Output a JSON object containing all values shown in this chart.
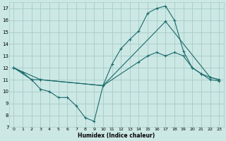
{
  "xlabel": "Humidex (Indice chaleur)",
  "xlim": [
    -0.5,
    23.5
  ],
  "ylim": [
    7,
    17.5
  ],
  "xticks": [
    0,
    1,
    2,
    3,
    4,
    5,
    6,
    7,
    8,
    9,
    10,
    11,
    12,
    13,
    14,
    15,
    16,
    17,
    18,
    19,
    20,
    21,
    22,
    23
  ],
  "yticks": [
    7,
    8,
    9,
    10,
    11,
    12,
    13,
    14,
    15,
    16,
    17
  ],
  "bg_color": "#cce8e5",
  "grid_color": "#aacfcb",
  "line_color": "#1a6b6b",
  "line1_x": [
    0,
    1,
    2,
    3,
    4,
    5,
    6,
    7,
    8,
    9,
    10,
    11,
    12,
    13,
    14,
    15,
    16,
    17,
    18,
    19,
    20,
    21,
    22,
    23
  ],
  "line1_y": [
    12.0,
    11.6,
    11.0,
    10.2,
    10.0,
    9.5,
    9.5,
    8.8,
    7.8,
    7.5,
    10.5,
    12.3,
    13.6,
    14.4,
    15.1,
    16.6,
    17.0,
    17.2,
    16.0,
    13.4,
    12.0,
    11.5,
    11.0,
    10.9
  ],
  "line2_x": [
    0,
    2,
    3,
    10,
    14,
    15,
    16,
    17,
    18,
    19,
    20,
    21,
    22,
    23
  ],
  "line2_y": [
    12.0,
    11.0,
    11.0,
    10.5,
    12.5,
    13.0,
    13.3,
    13.0,
    13.3,
    13.0,
    12.0,
    11.5,
    11.2,
    11.0
  ],
  "line3_x": [
    0,
    3,
    10,
    17,
    22,
    23
  ],
  "line3_y": [
    12.0,
    11.0,
    10.5,
    15.9,
    11.2,
    11.0
  ]
}
